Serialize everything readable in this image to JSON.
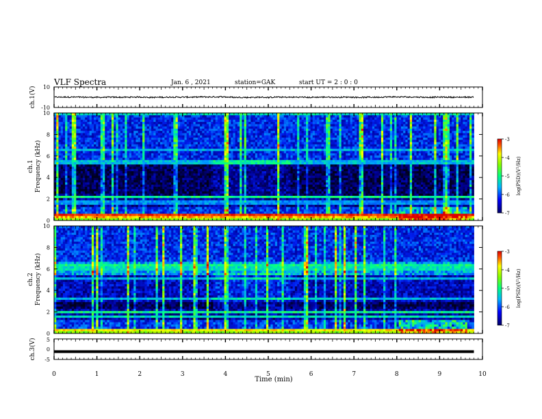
{
  "header": {
    "title": "VLF Spectra",
    "date": "Jan. 6 , 2021",
    "station": "station=GAK",
    "start": "start UT = 2 : 0 : 0"
  },
  "chart_data": [
    {
      "type": "line",
      "panel": "ch1-waveform",
      "ylabel": "ch.1(V)",
      "ylim": [
        -10,
        10
      ],
      "yticks": [
        "10",
        "-10"
      ],
      "level": 0,
      "amplitude": 1.2
    },
    {
      "type": "heatmap",
      "panel": "ch1-spectrogram",
      "ylabel_top": "ch.1",
      "ylabel": "Frequency (kHz)",
      "ylim": [
        0,
        10
      ],
      "yticks": [
        "0",
        "2",
        "4",
        "6",
        "8",
        "10"
      ],
      "colorbar": {
        "label": "log(PSD)(V²/Hz)",
        "range": [
          -7,
          -3
        ],
        "ticks": [
          "-3",
          "-4",
          "-5",
          "-6",
          "-7"
        ]
      }
    },
    {
      "type": "heatmap",
      "panel": "ch2-spectrogram",
      "ylabel_top": "ch.2",
      "ylabel": "Frequency (kHz)",
      "ylim": [
        0,
        10
      ],
      "yticks": [
        "0",
        "2",
        "4",
        "6",
        "8",
        "10"
      ],
      "colorbar": {
        "label": "log(PSD)(V²/Hz)",
        "range": [
          -7,
          -3
        ],
        "ticks": [
          "-3",
          "-4",
          "-5",
          "-6",
          "-7"
        ]
      }
    },
    {
      "type": "line",
      "panel": "ch3-waveform",
      "ylabel": "ch.3(V)",
      "ylim": [
        -5,
        5
      ],
      "yticks": [
        "5",
        "0",
        "-5"
      ],
      "level": -1.2
    }
  ],
  "xaxis": {
    "label": "Time (min)",
    "range": [
      0,
      10
    ],
    "ticks": [
      "0",
      "1",
      "2",
      "3",
      "4",
      "5",
      "6",
      "7",
      "8",
      "9",
      "10"
    ],
    "data_end": 9.8
  },
  "colors": {
    "spectrogram": [
      "#000033",
      "#0000c8",
      "#0050ff",
      "#00c8ff",
      "#00ff80",
      "#ffff00",
      "#ff0000"
    ]
  }
}
